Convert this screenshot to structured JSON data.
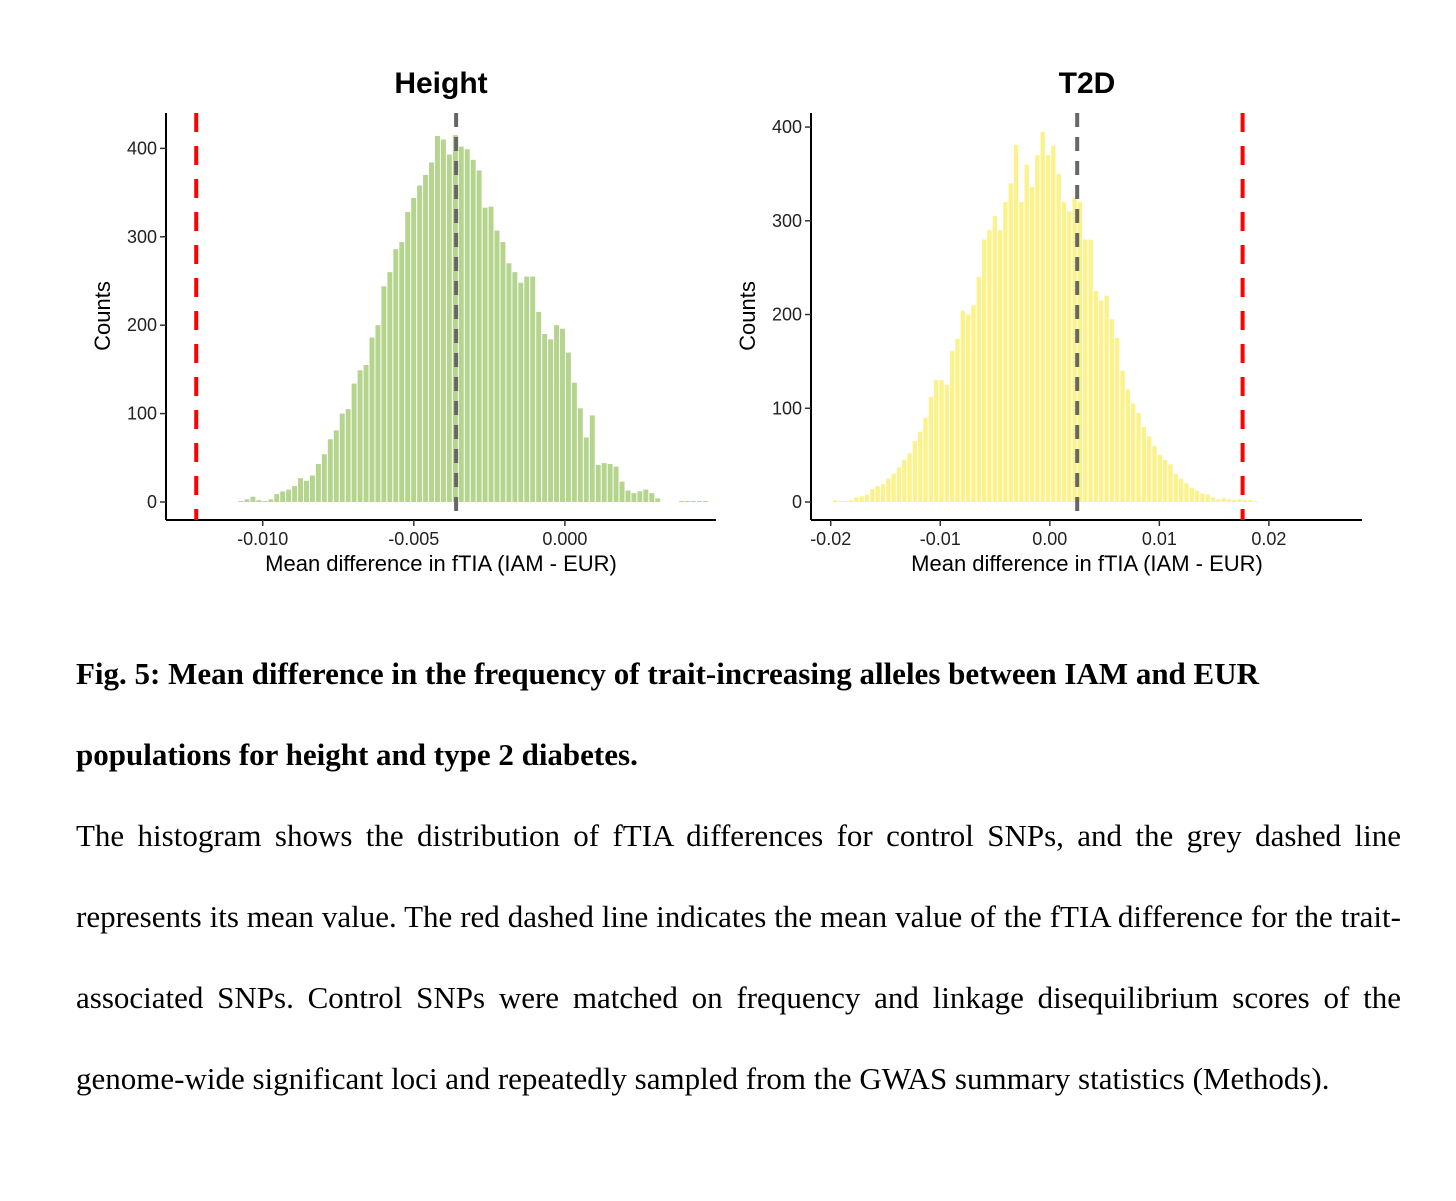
{
  "chart_data": [
    {
      "type": "bar",
      "title": "Height",
      "xlabel": "Mean difference in fTIA (IAM - EUR)",
      "ylabel": "Counts",
      "xlim": [
        -0.0132,
        0.005
      ],
      "ylim": [
        0,
        440
      ],
      "xticks": [
        -0.01,
        -0.005,
        0.0
      ],
      "xtick_labels": [
        "-0.010",
        "-0.005",
        "0.000"
      ],
      "yticks": [
        0,
        100,
        200,
        300,
        400
      ],
      "ytick_labels": [
        "0",
        "100",
        "200",
        "300",
        "400"
      ],
      "bar_color": "#b5d58f",
      "bins_start": -0.0108,
      "bin_width": 0.000197,
      "counts": [
        1,
        3,
        6,
        2,
        1,
        3,
        9,
        12,
        14,
        18,
        27,
        24,
        30,
        43,
        54,
        71,
        81,
        100,
        105,
        134,
        149,
        155,
        186,
        200,
        244,
        260,
        286,
        294,
        328,
        344,
        358,
        370,
        384,
        414,
        410,
        393,
        415,
        402,
        399,
        387,
        375,
        333,
        334,
        307,
        294,
        270,
        260,
        248,
        255,
        255,
        215,
        190,
        184,
        200,
        196,
        169,
        135,
        106,
        73,
        98,
        42,
        44,
        43,
        40,
        23,
        13,
        10,
        12,
        14,
        10,
        4,
        0,
        0,
        0,
        1,
        1,
        1,
        1,
        1
      ],
      "mean_control": -0.0036,
      "mean_trait": -0.0122,
      "mean_control_color": "#666666",
      "mean_trait_color": "#ff0000"
    },
    {
      "type": "bar",
      "title": "T2D",
      "xlabel": "Mean difference in fTIA (IAM - EUR)",
      "ylabel": "Counts",
      "xlim": [
        -0.0218,
        0.0285
      ],
      "ylim": [
        0,
        415
      ],
      "xticks": [
        -0.02,
        -0.01,
        0.0,
        0.01,
        0.02
      ],
      "xtick_labels": [
        "-0.02",
        "-0.01",
        "0.00",
        "0.01",
        "0.02"
      ],
      "yticks": [
        0,
        100,
        200,
        300,
        400
      ],
      "ytick_labels": [
        "0",
        "100",
        "200",
        "300",
        "400"
      ],
      "bar_color": "#fbf28a",
      "bins_start": -0.0198,
      "bin_width": 0.000486,
      "counts": [
        2,
        1,
        1,
        2,
        5,
        6,
        8,
        14,
        17,
        19,
        25,
        30,
        37,
        45,
        52,
        65,
        75,
        90,
        112,
        130,
        130,
        125,
        161,
        174,
        204,
        200,
        210,
        240,
        280,
        290,
        305,
        290,
        320,
        340,
        381,
        320,
        360,
        336,
        370,
        395,
        370,
        380,
        350,
        320,
        310,
        325,
        320,
        280,
        280,
        225,
        215,
        220,
        195,
        175,
        140,
        120,
        105,
        95,
        80,
        70,
        60,
        50,
        45,
        40,
        30,
        25,
        20,
        15,
        12,
        9,
        8,
        5,
        3,
        4,
        3,
        2,
        3,
        2,
        2,
        1
      ],
      "mean_control": 0.0025,
      "mean_trait": 0.0176,
      "mean_control_color": "#666666",
      "mean_trait_color": "#ff0000"
    }
  ],
  "caption": {
    "title": "Fig. 5: Mean difference in the frequency of trait-increasing alleles between IAM and EUR populations for height and type 2 diabetes.",
    "body": "The histogram shows the distribution of fTIA differences for control SNPs, and the grey dashed line represents its mean value. The red dashed line indicates the mean value of the fTIA difference for the trait-associated SNPs. Control SNPs were matched on frequency and linkage disequilibrium scores of the genome-wide significant loci and repeatedly sampled from the GWAS summary statistics (Methods)."
  }
}
